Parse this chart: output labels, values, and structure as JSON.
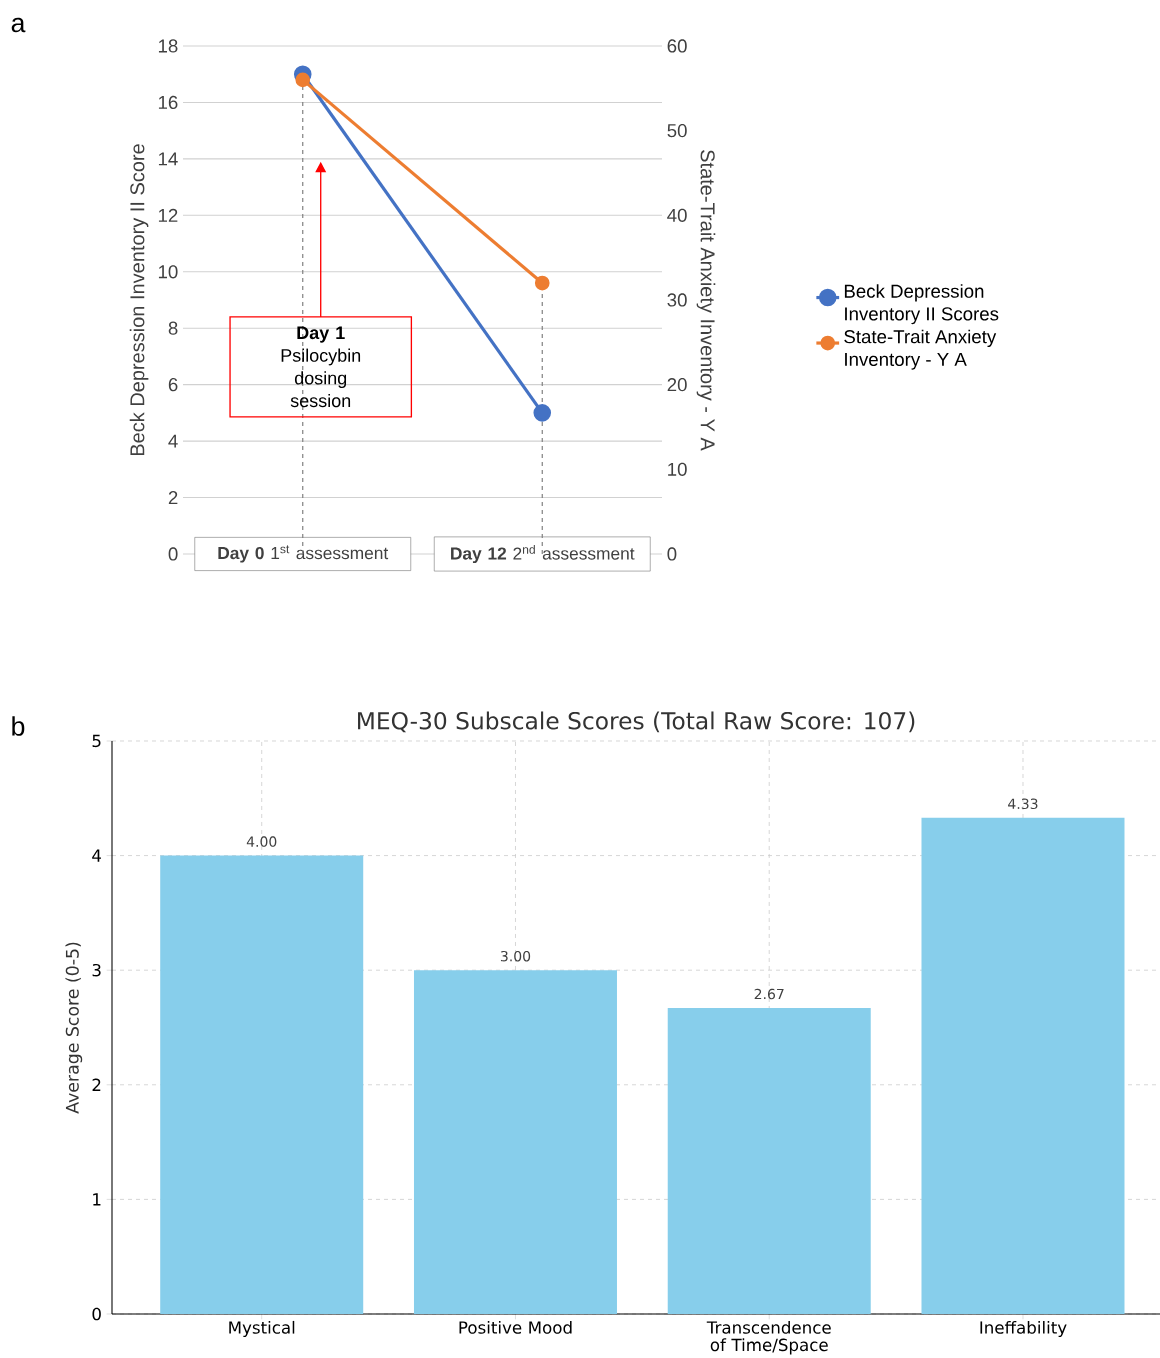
{
  "chart_data": [
    {
      "type": "line",
      "categories": [
        "**Day 0** 1$^{st}$ assessment",
        "**Day 12** 2$^{nd}$ assessment"
      ],
      "series": [
        {
          "name": "Beck Depression Inventory II Scores",
          "color": "#4472c4",
          "values": [
            17,
            5
          ]
        },
        {
          "name": "State-Trait Anxiety Inventory - Y A",
          "color": "#ed7d31",
          "values": [
            56,
            32
          ],
          "axis": "y2"
        }
      ],
      "ylabel": "Beck Depression Inventory II Score",
      "y2label": "State-Trait Anxiety Inventory - Y A",
      "ylim": [
        0,
        18
      ],
      "yticks": [
        0,
        2,
        4,
        6,
        8,
        10,
        12,
        14,
        16,
        18
      ],
      "y2lim": [
        0,
        60
      ],
      "y2ticks": [
        0,
        10,
        20,
        30,
        40,
        50,
        60
      ],
      "grid": "y",
      "legend": "right",
      "marker": "circle",
      "line_style": "solid",
      "ref_lines": [
        {
          "axis": "x",
          "value": "**Day 0** 1$^{st}$ assessment",
          "color": "#808080",
          "line_style": "dashed"
        },
        {
          "axis": "x",
          "value": "**Day 12** 2$^{nd}$ assessment",
          "color": "#808080",
          "line_style": "dashed"
        }
      ],
      "annotations": [
        "a",
        "**Day 1** Psilocybin dosing session"
      ]
    },
    {
      "type": "bar",
      "title": "MEQ-30 Subscale Scores (Total Raw Score: 107)",
      "ylabel": "Average Score (0-5)",
      "categories": [
        "Mystical",
        "Positive Mood",
        "Transcendence of Time/Space",
        "Ineffability"
      ],
      "values": [
        4.0,
        3.0,
        2.67,
        4.33
      ],
      "color": "#87ceeb",
      "value_labels": [
        "4.00",
        "3.00",
        "2.67",
        "4.33"
      ],
      "ylim": [
        0,
        5
      ],
      "yticks": [
        0,
        1,
        2,
        3,
        4,
        5
      ],
      "grid": true,
      "annotations": [
        "b"
      ]
    }
  ]
}
